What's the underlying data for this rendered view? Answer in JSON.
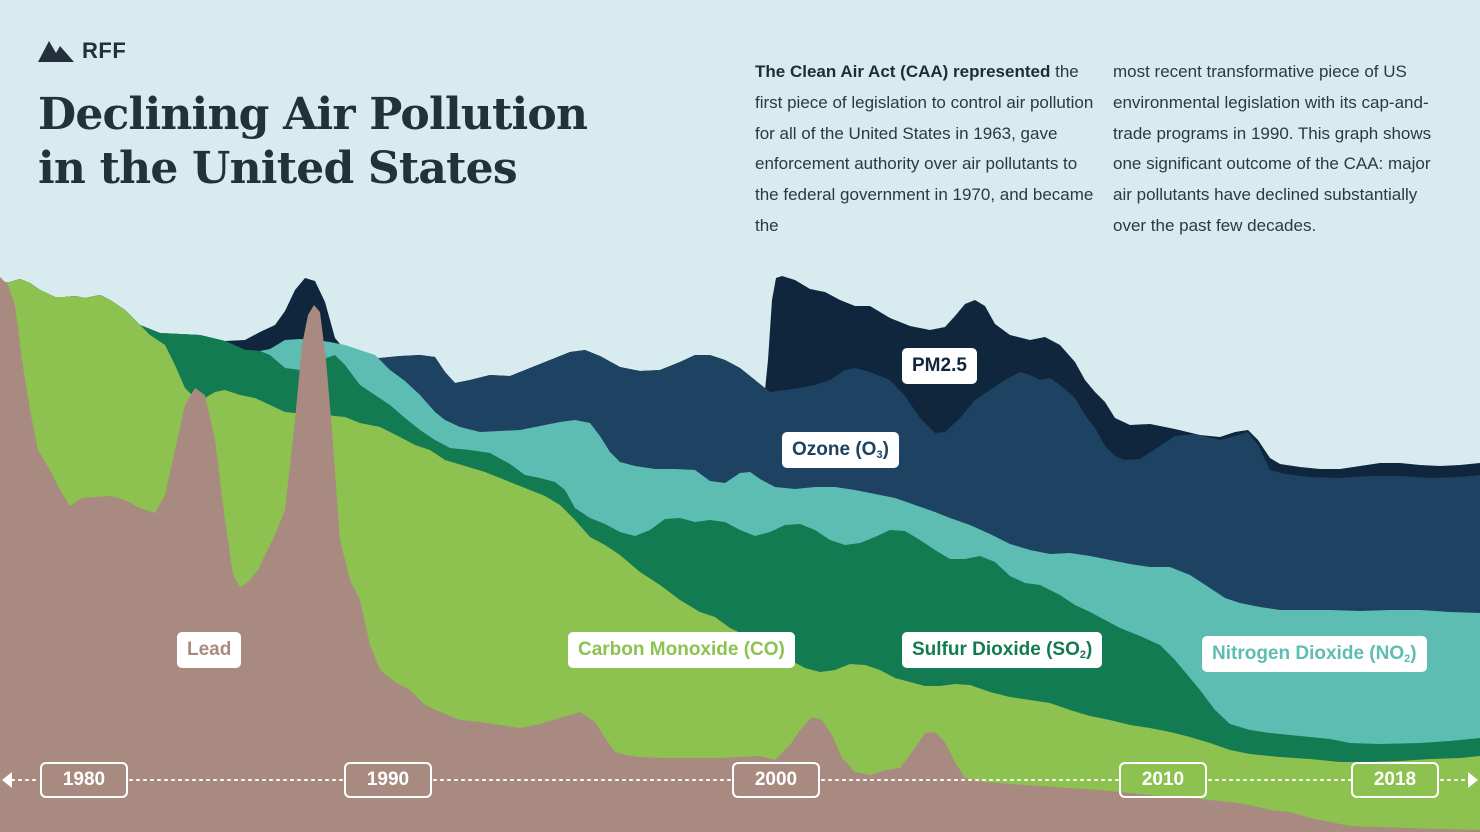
{
  "brand": {
    "name": "RFF"
  },
  "title": {
    "line1": "Declining Air Pollution",
    "line2": "in the United States"
  },
  "intro": {
    "bold": "The Clean Air Act (CAA) represented",
    "col1": "the first piece of legislation to control air pollution for all of the United States in 1963, gave enforcement authority over air pollutants to the federal government in 1970, and became the",
    "col2": "most recent transformative piece of US environmental legislation with its cap-and-trade programs in 1990. This graph shows one significant outcome of the CAA: major air pollutants have declined substantially over the past few decades."
  },
  "colors": {
    "background": "#d8ecef",
    "lead": "#a98a80",
    "co": "#8dc150",
    "so2": "#127b52",
    "no2": "#5dbdb2",
    "ozone": "#1e4262",
    "pm25": "#10263d"
  },
  "chart_data": {
    "type": "area",
    "stacked": true,
    "x_axis": {
      "ticks": [
        "1980",
        "1990",
        "2000",
        "2010",
        "2018"
      ]
    },
    "series": [
      {
        "key": "lead",
        "label_main": "Lead",
        "label_sub": "",
        "label_tail": ""
      },
      {
        "key": "co",
        "label_main": "Carbon Monoxide (CO)",
        "label_sub": "",
        "label_tail": ""
      },
      {
        "key": "so2",
        "label_main": "Sulfur Dioxide (SO",
        "label_sub": "2",
        "label_tail": ")"
      },
      {
        "key": "no2",
        "label_main": "Nitrogen Dioxide (NO",
        "label_sub": "2",
        "label_tail": ")"
      },
      {
        "key": "ozone",
        "label_main": "Ozone (O",
        "label_sub": "3",
        "label_tail": ")"
      },
      {
        "key": "pm25",
        "label_main": "PM2.5",
        "label_sub": "",
        "label_tail": ""
      }
    ]
  }
}
